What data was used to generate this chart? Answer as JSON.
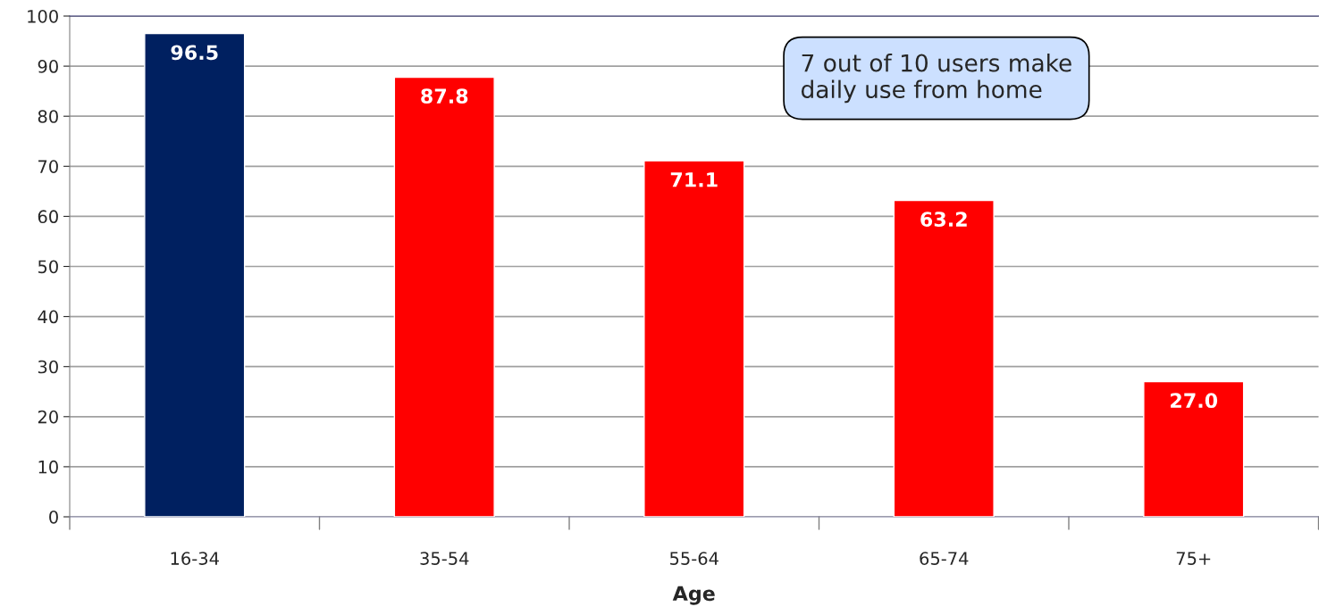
{
  "chart_data": {
    "type": "bar",
    "xlabel": "Age",
    "categories": [
      "16-34",
      "35-54",
      "55-64",
      "65-74",
      "75+"
    ],
    "values": [
      96.5,
      87.8,
      71.1,
      63.2,
      27.0
    ],
    "colors": [
      "#002060",
      "#ff0000",
      "#ff0000",
      "#ff0000",
      "#ff0000"
    ],
    "value_labels": [
      "96.5",
      "87.8",
      "71.1",
      "63.2",
      "27.0"
    ],
    "ylim": [
      0,
      100
    ],
    "yticks": [
      0,
      10,
      20,
      30,
      40,
      50,
      60,
      70,
      80,
      90,
      100
    ],
    "grid": "y",
    "annotations": [
      "7 out of 10 users make\ndaily use from home"
    ]
  }
}
